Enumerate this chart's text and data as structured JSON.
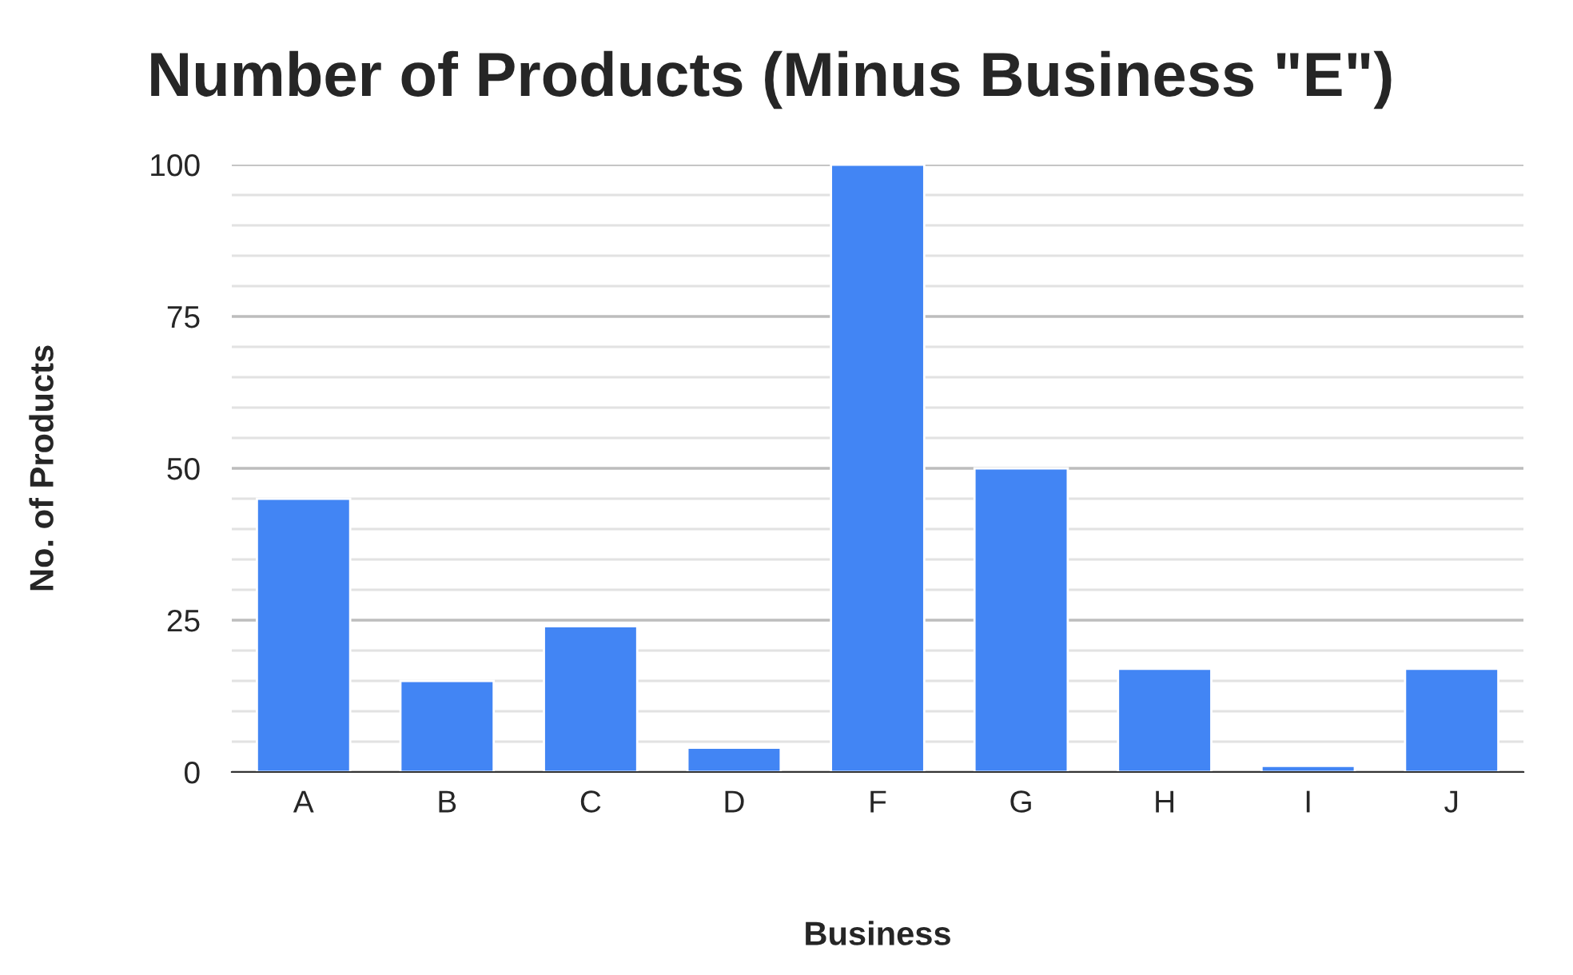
{
  "chart_data": {
    "type": "bar",
    "title": "Number of Products (Minus Business \"E\")",
    "xlabel": "Business",
    "ylabel": "No. of Products",
    "categories": [
      "A",
      "B",
      "C",
      "D",
      "F",
      "G",
      "H",
      "I",
      "J"
    ],
    "values": [
      45,
      15,
      24,
      4,
      100,
      50,
      17,
      1,
      17
    ],
    "color": "#4285f4",
    "ylim": [
      0,
      100
    ],
    "yticks": [
      0,
      {
        "value": 5,
        "label": null
      },
      {
        "value": 10,
        "label": null
      },
      {
        "value": 15,
        "label": null
      },
      {
        "value": 20,
        "label": null
      },
      25,
      {
        "value": 30,
        "label": null
      },
      {
        "value": 35,
        "label": null
      },
      {
        "value": 40,
        "label": null
      },
      {
        "value": 45,
        "label": null
      },
      50,
      {
        "value": 55,
        "label": null
      },
      {
        "value": 60,
        "label": null
      },
      {
        "value": 65,
        "label": null
      },
      {
        "value": 70,
        "label": null
      },
      75,
      {
        "value": 80,
        "label": null
      },
      {
        "value": 85,
        "label": null
      },
      {
        "value": 90,
        "label": null
      },
      {
        "value": 95,
        "label": null
      },
      100
    ],
    "grid": "y",
    "legend": false
  }
}
